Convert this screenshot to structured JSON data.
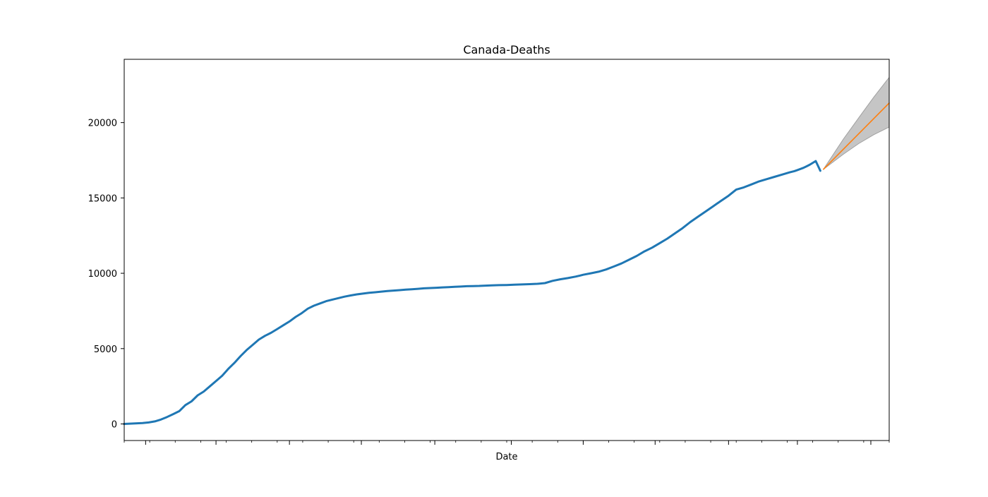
{
  "chart_data": {
    "type": "line",
    "title": "Canada-Deaths",
    "xlabel": "Date",
    "ylabel": "",
    "ylim": [
      -1100,
      24200
    ],
    "yticks": [
      0,
      5000,
      10000,
      15000,
      20000
    ],
    "xlim": [
      0,
      500
    ],
    "grid": false,
    "legend": "none",
    "series": [
      {
        "role": "observed",
        "color": "#1f77b4",
        "x": [
          0,
          6,
          12,
          16,
          20,
          24,
          28,
          32,
          36,
          40,
          44,
          48,
          52,
          56,
          60,
          64,
          68,
          72,
          76,
          80,
          84,
          88,
          92,
          96,
          100,
          104,
          108,
          112,
          116,
          120,
          124,
          128,
          132,
          136,
          140,
          144,
          148,
          152,
          156,
          160,
          164,
          168,
          172,
          176,
          180,
          184,
          188,
          192,
          196,
          200,
          204,
          208,
          212,
          216,
          220,
          224,
          228,
          232,
          236,
          240,
          245,
          250,
          255,
          260,
          265,
          270,
          275,
          280,
          285,
          290,
          295,
          298,
          300,
          305,
          310,
          315,
          320,
          325,
          330,
          335,
          340,
          345,
          350,
          355,
          360,
          365,
          370,
          375,
          380,
          385,
          390,
          395,
          400,
          405,
          410,
          415,
          420,
          425,
          430,
          435,
          438,
          440,
          444,
          448,
          452,
          455
        ],
        "y": [
          0,
          30,
          60,
          100,
          170,
          290,
          460,
          650,
          850,
          1250,
          1500,
          1900,
          2150,
          2500,
          2850,
          3200,
          3650,
          4050,
          4500,
          4900,
          5250,
          5600,
          5850,
          6050,
          6300,
          6550,
          6800,
          7100,
          7350,
          7650,
          7850,
          8000,
          8150,
          8250,
          8350,
          8450,
          8530,
          8600,
          8650,
          8700,
          8740,
          8780,
          8820,
          8850,
          8880,
          8910,
          8940,
          8970,
          9000,
          9020,
          9040,
          9060,
          9080,
          9100,
          9120,
          9140,
          9150,
          9160,
          9180,
          9200,
          9210,
          9220,
          9240,
          9260,
          9280,
          9300,
          9350,
          9500,
          9600,
          9680,
          9780,
          9850,
          9900,
          10000,
          10100,
          10250,
          10450,
          10650,
          10900,
          11150,
          11450,
          11700,
          12000,
          12300,
          12650,
          13000,
          13400,
          13750,
          14100,
          14450,
          14800,
          15150,
          15550,
          15700,
          15900,
          16100,
          16250,
          16400,
          16550,
          16700,
          16780,
          16850,
          17000,
          17200,
          17450,
          16800
        ]
      },
      {
        "role": "forecast",
        "color": "#ff7f0e",
        "x": [
          457,
          500
        ],
        "y": [
          16900,
          21300
        ]
      }
    ],
    "confidence_band": {
      "color": "#bfbfbf",
      "x": [
        457,
        470,
        480,
        490,
        500
      ],
      "lower": [
        16900,
        17900,
        18600,
        19200,
        19700
      ],
      "upper": [
        16900,
        18900,
        20300,
        21700,
        23000
      ]
    }
  }
}
